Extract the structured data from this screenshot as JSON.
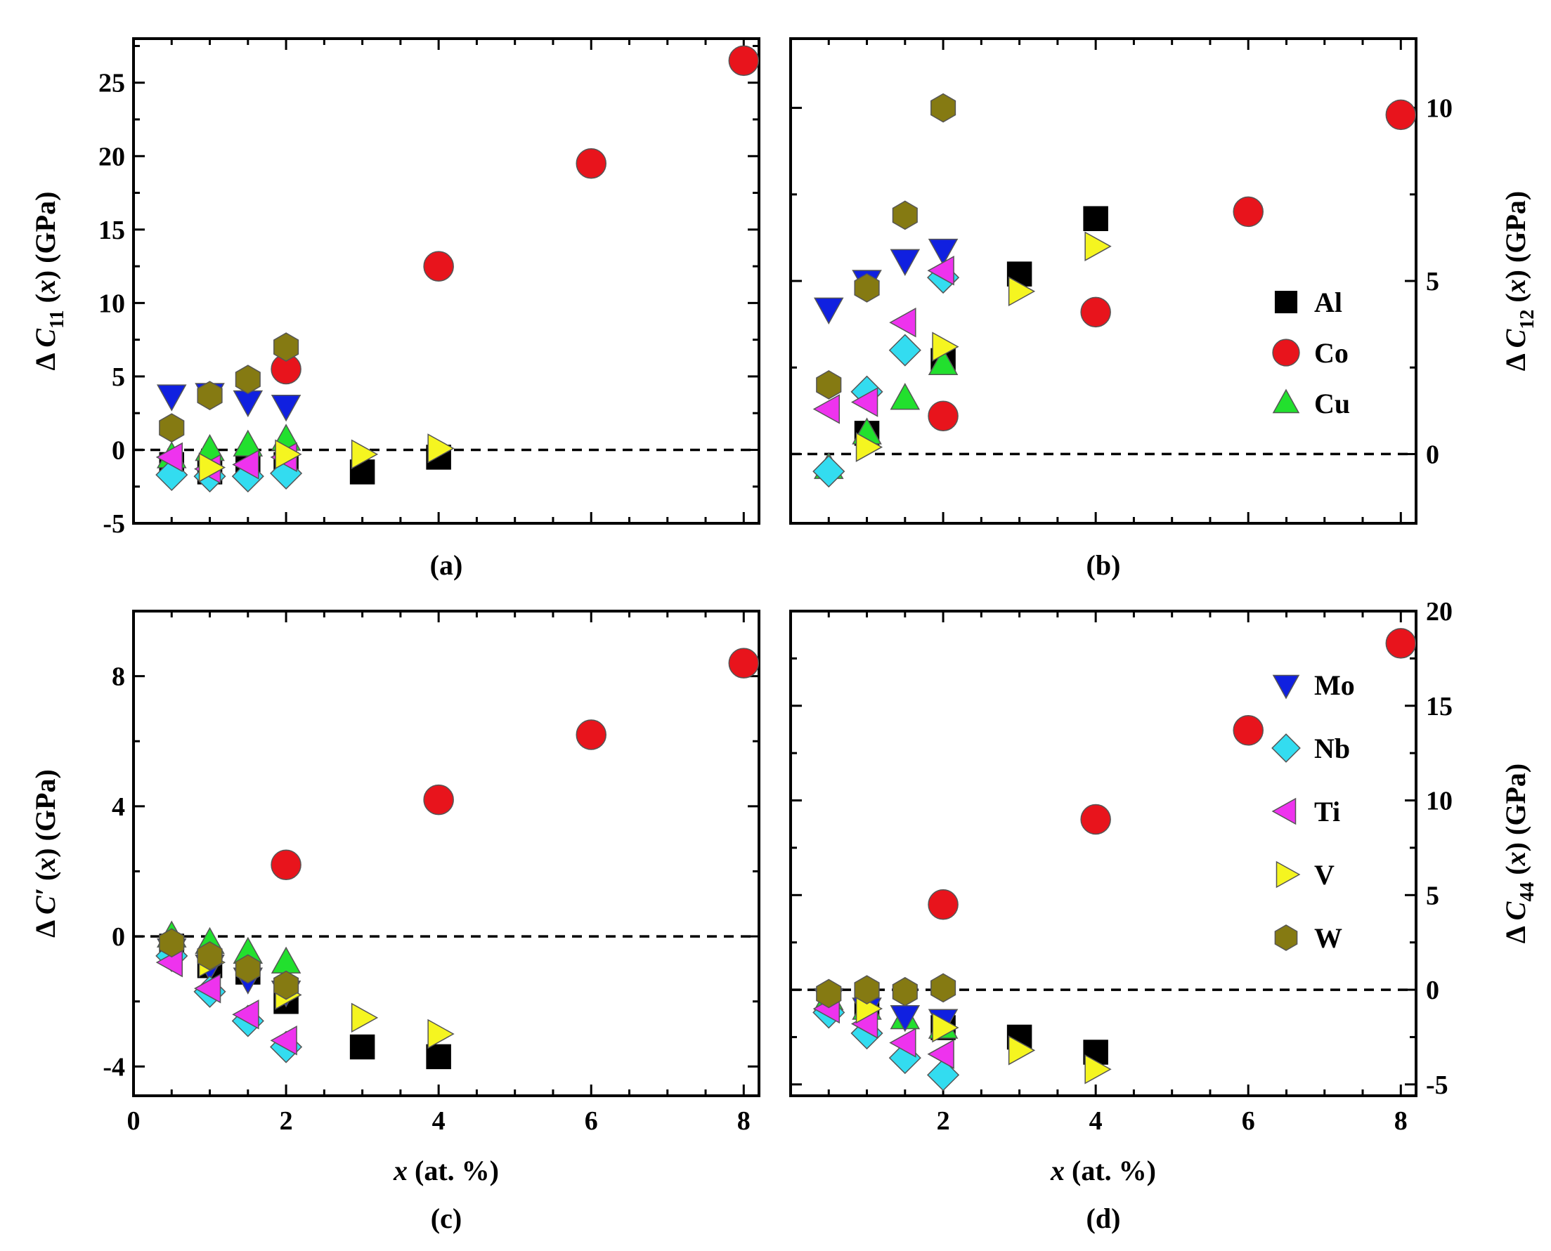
{
  "figure": {
    "panel_a": {
      "caption": "(a)",
      "ylabel": "Δ C11 (x) (GPa)"
    },
    "panel_b": {
      "caption": "(b)",
      "ylabel": "Δ C12 (x) (GPa)"
    },
    "panel_c": {
      "caption": "(c)",
      "ylabel": "Δ C′ (x) (GPa)",
      "xlabel": "x (at. %)"
    },
    "panel_d": {
      "caption": "(d)",
      "ylabel": "Δ C44 (x) (GPa)",
      "xlabel": "x (at. %)"
    }
  },
  "colors": {
    "Al": "#000000",
    "Co": "#e8141c",
    "Cu": "#22e02e",
    "Mo": "#1020e0",
    "Nb": "#33dcf0",
    "Ti": "#ee33ee",
    "V": "#f5f520",
    "W": "#857a12",
    "stroke": "#555555"
  },
  "chart_data": [
    {
      "id": "a",
      "type": "scatter",
      "title": "(a)",
      "xlabel": "",
      "ylabel": "Δ C11 (x) (GPa)",
      "xlim": [
        0,
        8.2
      ],
      "ylim": [
        -5,
        28
      ],
      "xticks": [],
      "yticks": [
        -5,
        0,
        5,
        10,
        15,
        20,
        25
      ],
      "ytick_labels": [
        "-5",
        "0",
        "5",
        "10",
        "15",
        "20",
        "25"
      ],
      "yaxis_side": "left",
      "reference_line": 0,
      "series": [
        {
          "name": "Al",
          "marker": "square",
          "x": [
            0.5,
            1,
            1.5,
            2,
            3,
            4
          ],
          "y": [
            -1.0,
            -1.5,
            -1.0,
            -1.0,
            -1.5,
            -0.5
          ]
        },
        {
          "name": "Co",
          "marker": "circle",
          "x": [
            2,
            4,
            6,
            8
          ],
          "y": [
            5.5,
            12.5,
            19.5,
            26.5
          ]
        },
        {
          "name": "Cu",
          "marker": "triangle-up",
          "x": [
            0.5,
            1,
            1.5,
            2
          ],
          "y": [
            -0.5,
            0.0,
            0.3,
            0.7
          ]
        },
        {
          "name": "Mo",
          "marker": "triangle-down",
          "x": [
            0.5,
            1,
            1.5,
            2
          ],
          "y": [
            3.7,
            3.8,
            3.3,
            3.0
          ]
        },
        {
          "name": "Nb",
          "marker": "diamond",
          "x": [
            0.5,
            1,
            1.5,
            2
          ],
          "y": [
            -1.7,
            -1.8,
            -1.8,
            -1.6
          ]
        },
        {
          "name": "Ti",
          "marker": "triangle-left",
          "x": [
            0.5,
            1,
            1.5,
            2
          ],
          "y": [
            -0.5,
            -1.3,
            -1.0,
            -0.5
          ]
        },
        {
          "name": "V",
          "marker": "triangle-right",
          "x": [
            1,
            2,
            3,
            4
          ],
          "y": [
            -1.2,
            -0.3,
            -0.3,
            0.1
          ]
        },
        {
          "name": "W",
          "marker": "hexagon",
          "x": [
            0.5,
            1,
            1.5,
            2
          ],
          "y": [
            1.5,
            3.7,
            4.8,
            7.0
          ]
        }
      ]
    },
    {
      "id": "b",
      "type": "scatter",
      "title": "(b)",
      "xlabel": "",
      "ylabel": "Δ C12 (x) (GPa)",
      "xlim": [
        0,
        8.2
      ],
      "ylim": [
        -2,
        12
      ],
      "xticks": [],
      "yticks": [
        0,
        5,
        10
      ],
      "ytick_labels": [
        "0",
        "5",
        "10"
      ],
      "yaxis_side": "right",
      "reference_line": 0,
      "legend": [
        "Al",
        "Co",
        "Cu"
      ],
      "legend_position": "center-right",
      "series": [
        {
          "name": "Al",
          "marker": "square",
          "x": [
            1,
            2,
            3,
            4
          ],
          "y": [
            0.6,
            2.7,
            5.2,
            6.8
          ]
        },
        {
          "name": "Co",
          "marker": "circle",
          "x": [
            2,
            4,
            6,
            8
          ],
          "y": [
            1.1,
            4.1,
            7.0,
            9.8
          ]
        },
        {
          "name": "Cu",
          "marker": "triangle-up",
          "x": [
            0.5,
            1,
            1.5,
            2
          ],
          "y": [
            -0.4,
            0.6,
            1.6,
            2.6
          ]
        },
        {
          "name": "Mo",
          "marker": "triangle-down",
          "x": [
            0.5,
            1,
            1.5,
            2
          ],
          "y": [
            4.2,
            5.0,
            5.6,
            5.9
          ]
        },
        {
          "name": "Nb",
          "marker": "diamond",
          "x": [
            0.5,
            1,
            1.5,
            2
          ],
          "y": [
            -0.5,
            1.8,
            3.0,
            5.1
          ]
        },
        {
          "name": "Ti",
          "marker": "triangle-left",
          "x": [
            0.5,
            1,
            1.5,
            2
          ],
          "y": [
            1.3,
            1.5,
            3.8,
            5.3
          ]
        },
        {
          "name": "V",
          "marker": "triangle-right",
          "x": [
            1,
            2,
            3,
            4
          ],
          "y": [
            0.2,
            3.1,
            4.7,
            6.0
          ]
        },
        {
          "name": "W",
          "marker": "hexagon",
          "x": [
            0.5,
            1,
            1.5,
            2
          ],
          "y": [
            2.0,
            4.8,
            6.9,
            10.0
          ]
        }
      ]
    },
    {
      "id": "c",
      "type": "scatter",
      "title": "(c)",
      "xlabel": "x (at. %)",
      "ylabel": "Δ C′ (x) (GPa)",
      "xlim": [
        0,
        8.2
      ],
      "ylim": [
        -4.9,
        10
      ],
      "xticks": [
        0,
        2,
        4,
        6,
        8
      ],
      "xtick_labels": [
        "0",
        "2",
        "4",
        "6",
        "8"
      ],
      "yticks": [
        -4,
        0,
        4,
        8
      ],
      "ytick_labels": [
        "-4",
        "0",
        "4",
        "8"
      ],
      "yaxis_side": "left",
      "reference_line": 0,
      "series": [
        {
          "name": "Al",
          "marker": "square",
          "x": [
            0.5,
            1,
            1.5,
            2,
            3,
            4
          ],
          "y": [
            -0.3,
            -0.9,
            -1.1,
            -2.0,
            -3.4,
            -3.7
          ]
        },
        {
          "name": "Co",
          "marker": "circle",
          "x": [
            2,
            4,
            6,
            8
          ],
          "y": [
            2.2,
            4.2,
            6.2,
            8.4
          ]
        },
        {
          "name": "Cu",
          "marker": "triangle-up",
          "x": [
            0.5,
            1,
            1.5,
            2
          ],
          "y": [
            0.0,
            -0.2,
            -0.5,
            -0.8
          ]
        },
        {
          "name": "Mo",
          "marker": "triangle-down",
          "x": [
            0.5,
            1,
            1.5,
            2
          ],
          "y": [
            -0.4,
            -0.9,
            -1.3,
            -1.7
          ]
        },
        {
          "name": "Nb",
          "marker": "diamond",
          "x": [
            0.5,
            1,
            1.5,
            2
          ],
          "y": [
            -0.6,
            -1.7,
            -2.6,
            -3.4
          ]
        },
        {
          "name": "Ti",
          "marker": "triangle-left",
          "x": [
            0.5,
            1,
            1.5,
            2
          ],
          "y": [
            -0.8,
            -1.6,
            -2.4,
            -3.2
          ]
        },
        {
          "name": "V",
          "marker": "triangle-right",
          "x": [
            1,
            2,
            3,
            4
          ],
          "y": [
            -0.8,
            -1.8,
            -2.5,
            -3.0
          ]
        },
        {
          "name": "W",
          "marker": "hexagon",
          "x": [
            0.5,
            1,
            1.5,
            2
          ],
          "y": [
            -0.2,
            -0.6,
            -1.0,
            -1.5
          ]
        }
      ]
    },
    {
      "id": "d",
      "type": "scatter",
      "title": "(d)",
      "xlabel": "x (at. %)",
      "ylabel": "Δ C44 (x) (GPa)",
      "xlim": [
        0,
        8.2
      ],
      "ylim": [
        -5.6,
        20
      ],
      "xticks": [
        2,
        4,
        6,
        8
      ],
      "xtick_labels": [
        "2",
        "4",
        "6",
        "8"
      ],
      "yticks": [
        -5,
        0,
        5,
        10,
        15,
        20
      ],
      "ytick_labels": [
        "-5",
        "0",
        "5",
        "10",
        "15",
        "20"
      ],
      "yaxis_side": "right",
      "reference_line": 0,
      "legend": [
        "Mo",
        "Nb",
        "Ti",
        "V",
        "W"
      ],
      "legend_position": "upper-right",
      "series": [
        {
          "name": "Al",
          "marker": "square",
          "x": [
            1,
            2,
            3,
            4
          ],
          "y": [
            -0.9,
            -2.0,
            -2.5,
            -3.3
          ]
        },
        {
          "name": "Co",
          "marker": "circle",
          "x": [
            2,
            4,
            6,
            8
          ],
          "y": [
            4.5,
            9.0,
            13.7,
            18.3
          ]
        },
        {
          "name": "Cu",
          "marker": "triangle-up",
          "x": [
            0.5,
            1,
            1.5,
            2
          ],
          "y": [
            -0.5,
            -1.0,
            -1.5,
            -2.0
          ]
        },
        {
          "name": "Mo",
          "marker": "triangle-down",
          "x": [
            0.5,
            1,
            1.5,
            2
          ],
          "y": [
            -0.5,
            -1.0,
            -1.4,
            -1.6
          ]
        },
        {
          "name": "Nb",
          "marker": "diamond",
          "x": [
            0.5,
            1,
            1.5,
            2
          ],
          "y": [
            -1.2,
            -2.3,
            -3.6,
            -4.5
          ]
        },
        {
          "name": "Ti",
          "marker": "triangle-left",
          "x": [
            0.5,
            1,
            1.5,
            2
          ],
          "y": [
            -1.0,
            -1.8,
            -2.8,
            -3.4
          ]
        },
        {
          "name": "V",
          "marker": "triangle-right",
          "x": [
            1,
            2,
            3,
            4
          ],
          "y": [
            -1.0,
            -2.0,
            -3.2,
            -4.2
          ]
        },
        {
          "name": "W",
          "marker": "hexagon",
          "x": [
            0.5,
            1,
            1.5,
            2
          ],
          "y": [
            -0.2,
            0.0,
            -0.1,
            0.1
          ]
        }
      ]
    }
  ]
}
